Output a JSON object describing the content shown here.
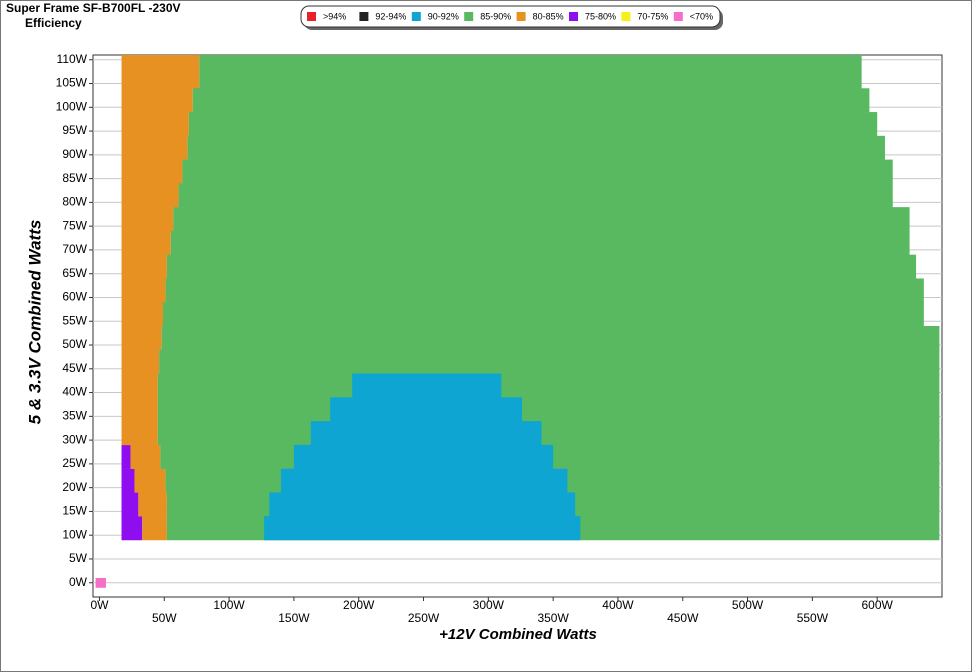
{
  "chart_data": {
    "type": "region-map",
    "title": "Super Frame  SF-B700FL -230V",
    "subtitle": "Efficiency",
    "x_label": "+12V Combined Watts",
    "y_label": "5 & 3.3V Combined Watts",
    "xlim": [
      -5,
      650
    ],
    "ylim": [
      -3,
      111
    ],
    "grid": true,
    "xticks": [
      {
        "value": 0,
        "label": "0W"
      },
      {
        "value": 50,
        "label": "50W"
      },
      {
        "value": 100,
        "label": "100W"
      },
      {
        "value": 150,
        "label": "150W"
      },
      {
        "value": 200,
        "label": "200W"
      },
      {
        "value": 250,
        "label": "250W"
      },
      {
        "value": 300,
        "label": "300W"
      },
      {
        "value": 350,
        "label": "350W"
      },
      {
        "value": 400,
        "label": "400W"
      },
      {
        "value": 450,
        "label": "450W"
      },
      {
        "value": 500,
        "label": "500W"
      },
      {
        "value": 550,
        "label": "550W"
      },
      {
        "value": 600,
        "label": "600W"
      }
    ],
    "yticks": [
      {
        "value": 0,
        "label": "0W"
      },
      {
        "value": 5,
        "label": "5W"
      },
      {
        "value": 10,
        "label": "10W"
      },
      {
        "value": 15,
        "label": "15W"
      },
      {
        "value": 20,
        "label": "20W"
      },
      {
        "value": 25,
        "label": "25W"
      },
      {
        "value": 30,
        "label": "30W"
      },
      {
        "value": 35,
        "label": "35W"
      },
      {
        "value": 40,
        "label": "40W"
      },
      {
        "value": 45,
        "label": "45W"
      },
      {
        "value": 50,
        "label": "50W"
      },
      {
        "value": 55,
        "label": "55W"
      },
      {
        "value": 60,
        "label": "60W"
      },
      {
        "value": 65,
        "label": "65W"
      },
      {
        "value": 70,
        "label": "70W"
      },
      {
        "value": 75,
        "label": "75W"
      },
      {
        "value": 80,
        "label": "80W"
      },
      {
        "value": 85,
        "label": "85W"
      },
      {
        "value": 90,
        "label": "90W"
      },
      {
        "value": 95,
        "label": "95W"
      },
      {
        "value": 100,
        "label": "100W"
      },
      {
        "value": 105,
        "label": "105W"
      },
      {
        "value": 110,
        "label": "110W"
      }
    ],
    "y_edges": [
      -1,
      1,
      9,
      14,
      19,
      24,
      29,
      34,
      39,
      44,
      49,
      54,
      59,
      64,
      69,
      74,
      79,
      84,
      89,
      94,
      99,
      104,
      111
    ],
    "series": [
      {
        "name": ">94%",
        "color": "#e8202a",
        "values": [
          null,
          null,
          null,
          null,
          null,
          null,
          null,
          null,
          null,
          null,
          null,
          null,
          null,
          null,
          null,
          null,
          null,
          null,
          null,
          null,
          null,
          null
        ]
      },
      {
        "name": "92-94%",
        "color": "#222222",
        "values": [
          null,
          null,
          null,
          null,
          null,
          null,
          null,
          null,
          null,
          null,
          null,
          null,
          null,
          null,
          null,
          null,
          null,
          null,
          null,
          null,
          null,
          null
        ]
      },
      {
        "name": "90-92%",
        "color": "#0ea5d3",
        "values": [
          null,
          null,
          [
            127,
            371
          ],
          [
            131,
            367
          ],
          [
            140,
            361
          ],
          [
            150,
            350
          ],
          [
            163,
            341
          ],
          [
            178,
            326
          ],
          [
            195,
            310
          ],
          null,
          null,
          null,
          null,
          null,
          null,
          null,
          null,
          null,
          null,
          null,
          null,
          null
        ]
      },
      {
        "name": "85-90%",
        "color": "#59b960",
        "values": [
          null,
          null,
          [
            52,
            648
          ],
          [
            52,
            648
          ],
          [
            51,
            648
          ],
          [
            47,
            648
          ],
          [
            45,
            648
          ],
          [
            45,
            648
          ],
          [
            45,
            648
          ],
          [
            46,
            648
          ],
          [
            48,
            648
          ],
          [
            49,
            636
          ],
          [
            51,
            636
          ],
          [
            52,
            630
          ],
          [
            55,
            625
          ],
          [
            57,
            625
          ],
          [
            61,
            612
          ],
          [
            64,
            612
          ],
          [
            68,
            606
          ],
          [
            69,
            600
          ],
          [
            72,
            594
          ],
          [
            77,
            588
          ]
        ]
      },
      {
        "name": "80-85%",
        "color": "#e69122",
        "values": [
          null,
          null,
          [
            33,
            52
          ],
          [
            30,
            52
          ],
          [
            27,
            51
          ],
          [
            24,
            47
          ],
          [
            17,
            45
          ],
          [
            17,
            45
          ],
          [
            17,
            45
          ],
          [
            17,
            46
          ],
          [
            17,
            48
          ],
          [
            17,
            49
          ],
          [
            17,
            51
          ],
          [
            17,
            52
          ],
          [
            17,
            55
          ],
          [
            17,
            57
          ],
          [
            17,
            61
          ],
          [
            17,
            64
          ],
          [
            17,
            68
          ],
          [
            17,
            69
          ],
          [
            17,
            72
          ],
          [
            17,
            77
          ]
        ]
      },
      {
        "name": "75-80%",
        "color": "#8e0ef0",
        "values": [
          null,
          null,
          [
            17,
            33
          ],
          [
            17,
            30
          ],
          [
            17,
            27
          ],
          [
            17,
            24
          ],
          null,
          null,
          null,
          null,
          null,
          null,
          null,
          null,
          null,
          null,
          null,
          null,
          null,
          null,
          null,
          null
        ]
      },
      {
        "name": "70-75%",
        "color": "#f5f01a",
        "values": [
          null,
          null,
          null,
          null,
          null,
          null,
          null,
          null,
          null,
          null,
          null,
          null,
          null,
          null,
          null,
          null,
          null,
          null,
          null,
          null,
          null,
          null
        ]
      },
      {
        "name": "<70%",
        "color": "#f56ec8",
        "values": [
          [
            -3,
            5
          ],
          null,
          null,
          null,
          null,
          null,
          null,
          null,
          null,
          null,
          null,
          null,
          null,
          null,
          null,
          null,
          null,
          null,
          null,
          null,
          null,
          null
        ]
      }
    ]
  }
}
